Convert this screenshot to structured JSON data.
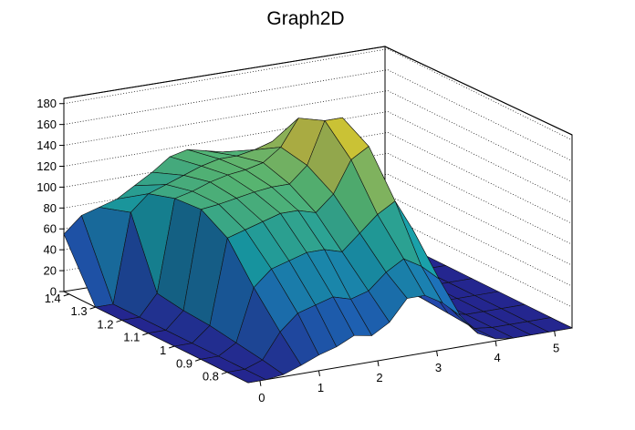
{
  "chart_data": {
    "type": "surface",
    "title": "Graph2D",
    "x_ticks": [
      "0",
      "1",
      "2",
      "3",
      "4",
      "5"
    ],
    "y_ticks": [
      "0.8",
      "0.9",
      "1",
      "1.1",
      "1.2",
      "1.3",
      "1.4"
    ],
    "z_ticks": [
      "0",
      "20",
      "40",
      "60",
      "80",
      "100",
      "120",
      "140",
      "160",
      "180"
    ],
    "x_range": [
      -0.2,
      5.3
    ],
    "y_range": [
      0.72,
      1.42
    ],
    "z_range": [
      0,
      185
    ],
    "colormap": "viridis-like (blue-green-yellow)",
    "grid": "on (back walls, dotted)",
    "x_grid": [
      -0.2,
      0.1,
      0.4,
      0.7,
      1.0,
      1.3,
      1.6,
      1.9,
      2.2,
      2.5,
      2.8,
      3.1,
      3.4,
      3.7,
      4.0,
      4.3,
      4.6,
      4.9,
      5.3
    ],
    "y_grid": [
      0.72,
      0.8,
      0.9,
      1.0,
      1.1,
      1.2,
      1.3,
      1.42
    ],
    "z_values": [
      [
        0,
        0,
        2,
        8,
        15,
        20,
        28,
        25,
        35,
        55,
        55,
        45,
        30,
        10,
        2,
        0,
        0,
        0,
        0
      ],
      [
        0,
        0,
        6,
        30,
        45,
        50,
        55,
        50,
        55,
        70,
        80,
        70,
        55,
        18,
        2,
        0,
        0,
        0,
        0
      ],
      [
        0,
        0,
        10,
        60,
        75,
        80,
        85,
        85,
        80,
        95,
        110,
        120,
        90,
        30,
        4,
        0,
        0,
        0,
        0
      ],
      [
        0,
        0,
        14,
        95,
        100,
        105,
        110,
        110,
        105,
        120,
        150,
        160,
        110,
        40,
        6,
        0,
        0,
        0,
        0
      ],
      [
        0,
        0,
        16,
        110,
        112,
        115,
        118,
        120,
        120,
        135,
        175,
        175,
        125,
        45,
        6,
        0,
        0,
        0,
        0
      ],
      [
        0,
        0,
        20,
        108,
        112,
        118,
        122,
        124,
        128,
        140,
        165,
        150,
        100,
        35,
        5,
        0,
        0,
        0,
        0
      ],
      [
        0,
        0,
        85,
        100,
        106,
        112,
        118,
        122,
        122,
        125,
        130,
        110,
        70,
        20,
        3,
        0,
        0,
        0,
        0
      ],
      [
        55,
        70,
        75,
        80,
        90,
        100,
        112,
        116,
        112,
        108,
        100,
        80,
        45,
        12,
        2,
        0,
        0,
        0,
        0
      ]
    ]
  }
}
